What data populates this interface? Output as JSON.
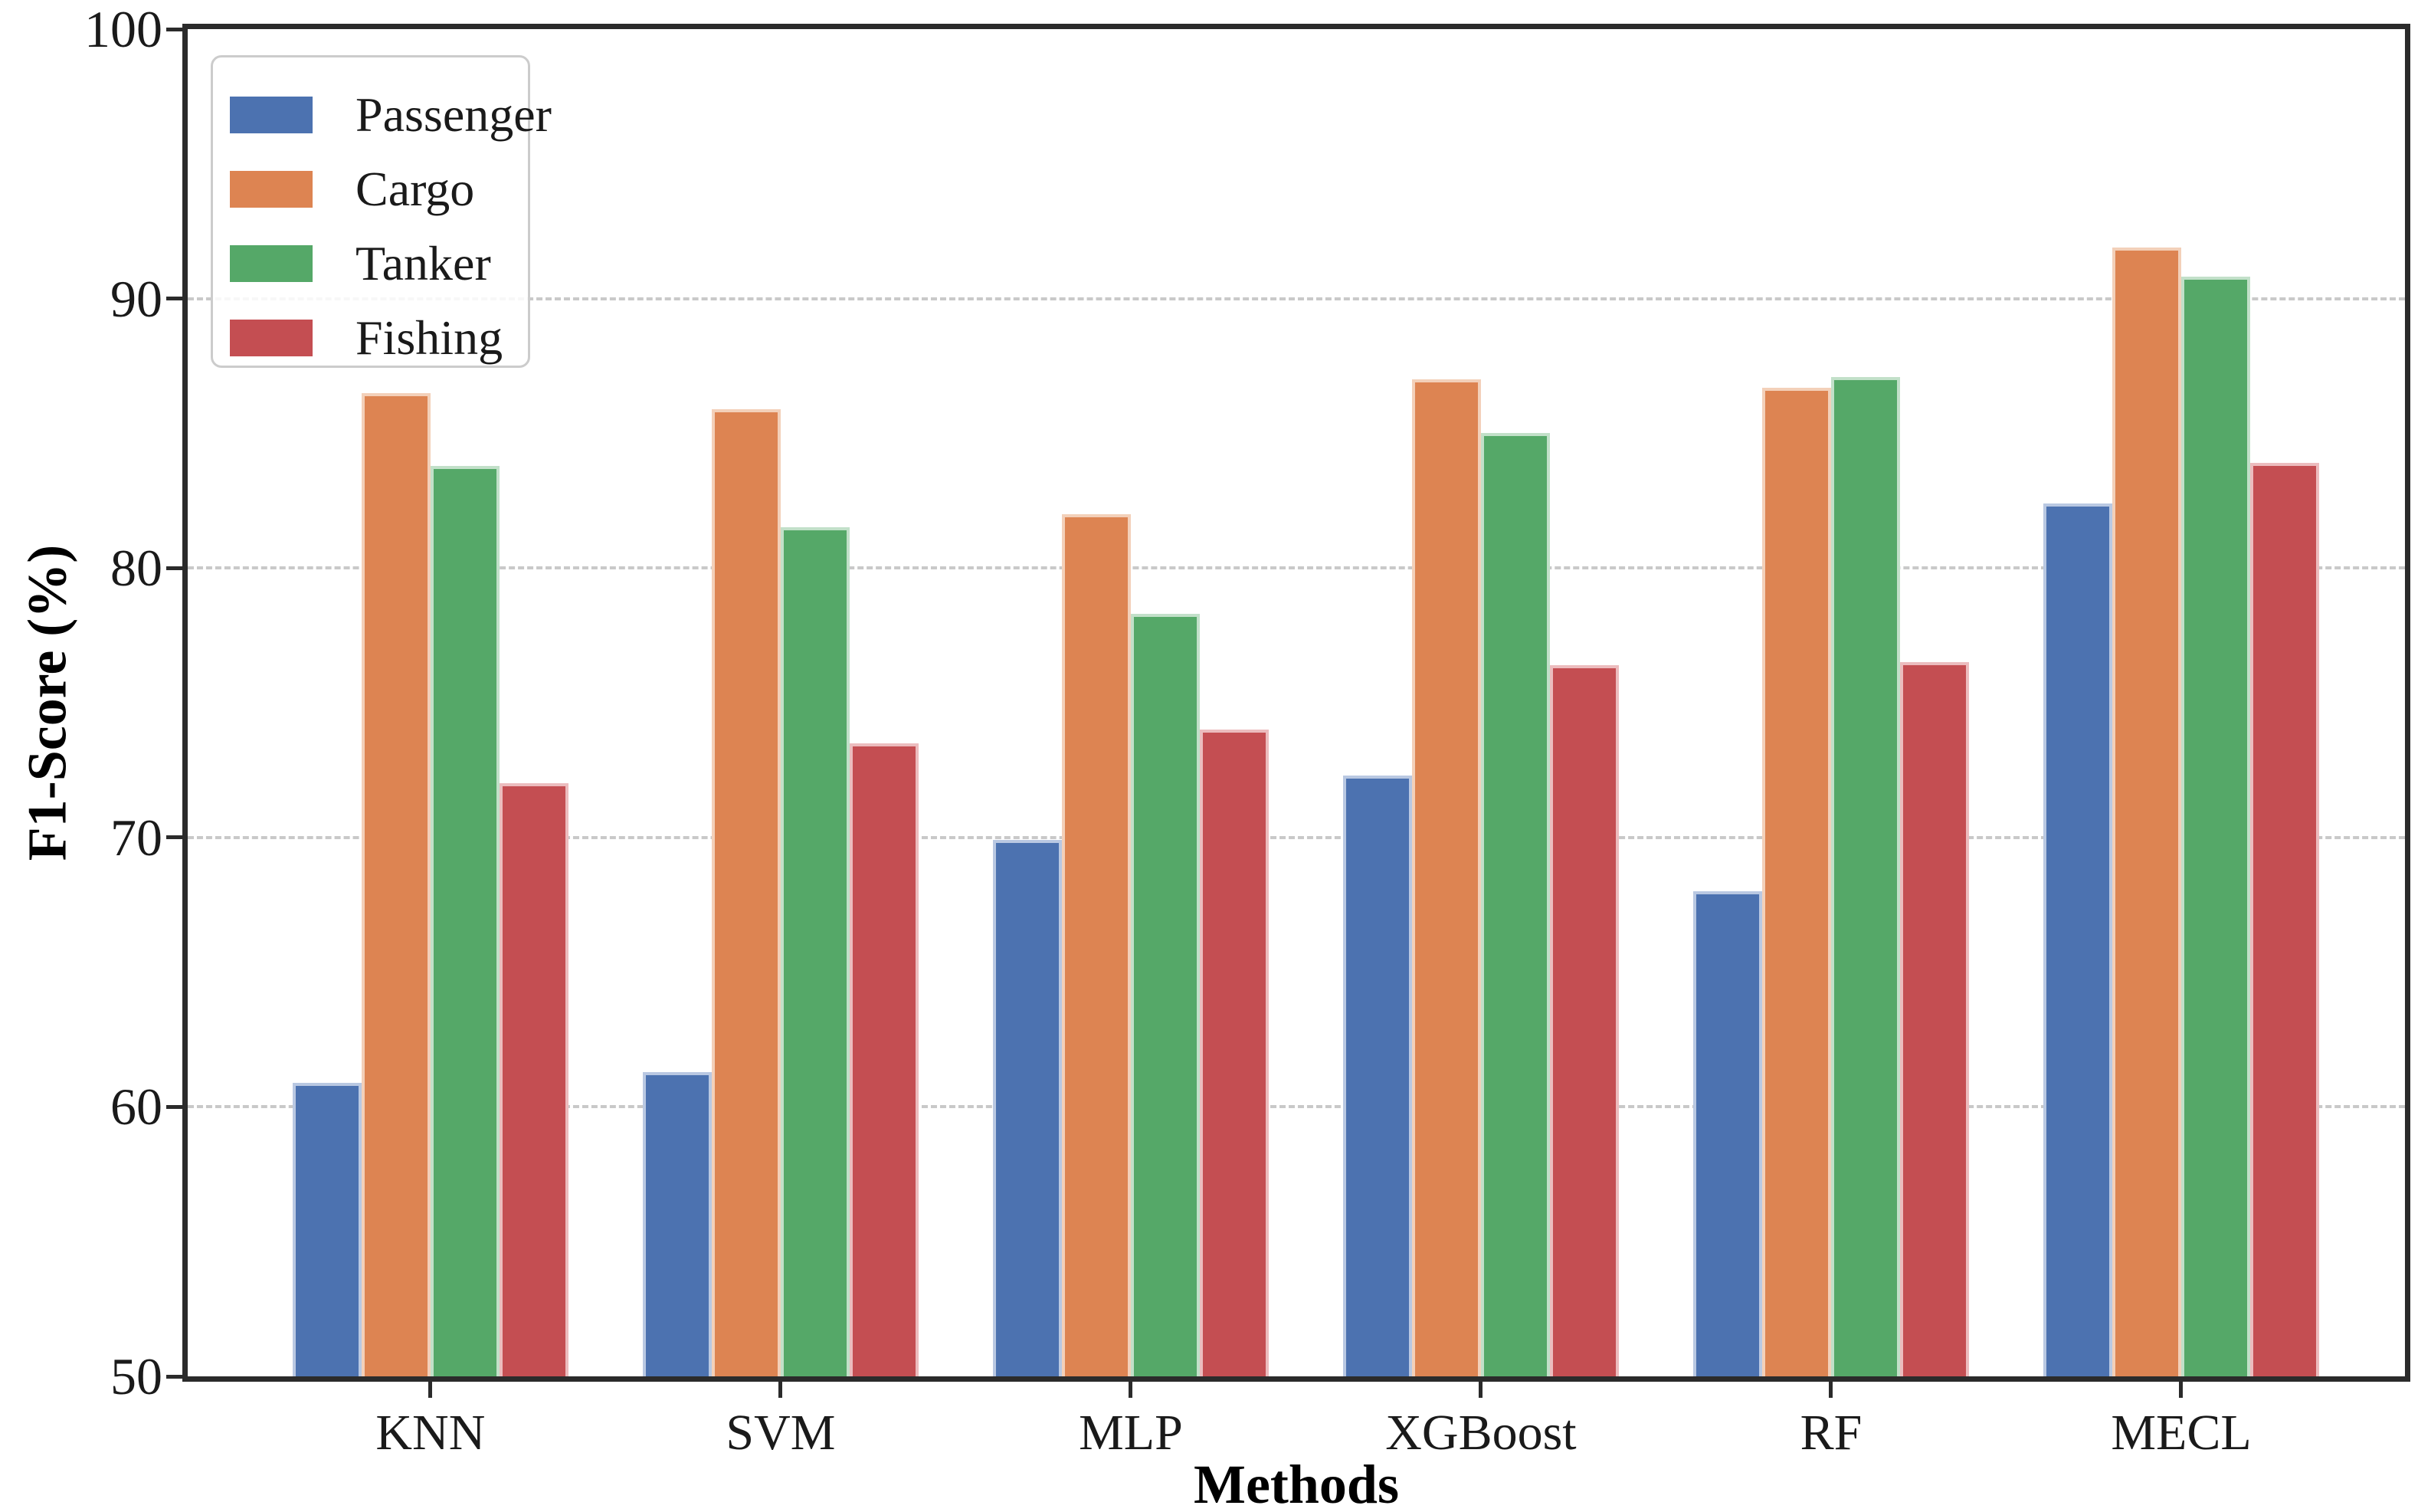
{
  "figure": {
    "background": "#ffffff",
    "spine_color": "#2b2b2b",
    "grid_color": "#c9c9c9",
    "text_color": "#1a1a1a"
  },
  "axes": {
    "ylabel": "F1-Score (%)",
    "xlabel": "Methods",
    "y_ticks": [
      50,
      60,
      70,
      80,
      90,
      100
    ],
    "gridline_values": [
      60,
      70,
      80,
      90
    ]
  },
  "legend": {
    "position": "upper-left",
    "items": [
      "Passenger",
      "Cargo",
      "Tanker",
      "Fishing"
    ]
  },
  "chart_data": {
    "type": "bar",
    "title": "",
    "xlabel": "Methods",
    "ylabel": "F1-Score (%)",
    "ylim": [
      50,
      100
    ],
    "grid": "horizontal-dashed",
    "legend_position": "upper left",
    "categories": [
      "KNN",
      "SVM",
      "MLP",
      "XGBoost",
      "RF",
      "MECL"
    ],
    "series": [
      {
        "name": "Passenger",
        "color": "#4C72B0",
        "edge_color": "#b9c8e2",
        "values": [
          60.9,
          61.3,
          69.9,
          72.3,
          68.0,
          82.4
        ]
      },
      {
        "name": "Cargo",
        "color": "#DD8452",
        "edge_color": "#f3d0b9",
        "values": [
          86.5,
          85.9,
          82.0,
          87.0,
          86.7,
          91.9
        ]
      },
      {
        "name": "Tanker",
        "color": "#55A868",
        "edge_color": "#c2e0c9",
        "values": [
          83.8,
          81.5,
          78.3,
          85.0,
          87.1,
          90.8
        ]
      },
      {
        "name": "Fishing",
        "color": "#C44E52",
        "edge_color": "#ecbcbe",
        "values": [
          72.0,
          73.5,
          74.0,
          76.4,
          76.5,
          83.9
        ]
      }
    ]
  }
}
